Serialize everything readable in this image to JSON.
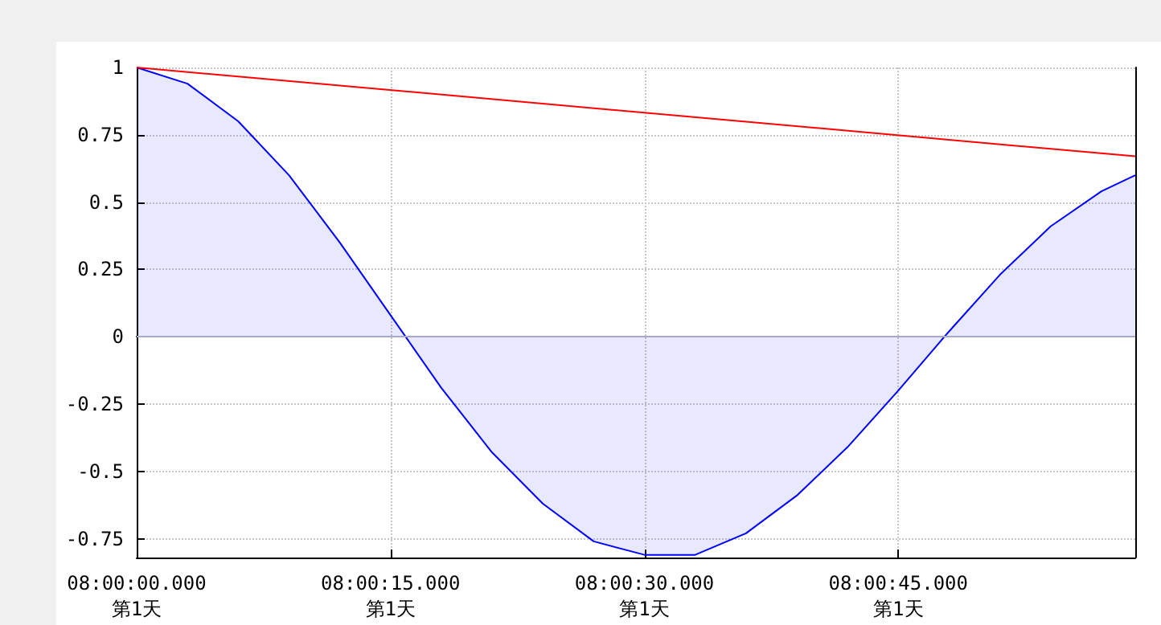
{
  "chart_data": {
    "type": "area",
    "x": [
      "2000-01-01T08:00:00",
      "2000-01-01T08:00:03",
      "2000-01-01T08:00:06",
      "2000-01-01T08:00:09",
      "2000-01-01T08:00:12",
      "2000-01-01T08:00:15",
      "2000-01-01T08:00:18",
      "2000-01-01T08:00:21",
      "2000-01-01T08:00:24",
      "2000-01-01T08:00:27",
      "2000-01-01T08:00:30",
      "2000-01-01T08:00:33",
      "2000-01-01T08:00:36",
      "2000-01-01T08:00:39",
      "2000-01-01T08:00:42",
      "2000-01-01T08:00:45",
      "2000-01-01T08:00:48",
      "2000-01-01T08:00:51",
      "2000-01-01T08:00:54",
      "2000-01-01T08:00:57",
      "2000-01-01T08:00:59"
    ],
    "series": [
      {
        "color": "#0000ff",
        "values": [
          1,
          0.94,
          0.8,
          0.6,
          0.35,
          0.08,
          -0.19,
          -0.43,
          -0.62,
          -0.76,
          -0.81,
          -0.81,
          -0.73,
          -0.59,
          -0.41,
          -0.2,
          0.02,
          0.23,
          0.41,
          0.54,
          0.6
        ]
      },
      {
        "type": "line",
        "color": "#ff0000",
        "x": [
          "2000-01-01T08:00:00",
          "2000-01-01T08:00:59"
        ],
        "values": [
          1,
          0.67
        ]
      }
    ],
    "xlim": [
      "2000-01-01T08:00:00",
      "2000-01-01T08:00:59"
    ],
    "xticks": [
      {
        "value": "2000-01-01T08:00:00",
        "label": "08:00:00.000\n第1天"
      },
      {
        "value": "2000-01-01T08:00:15",
        "label": "08:00:15.000\n第1天"
      },
      {
        "value": "2000-01-01T08:00:30",
        "label": "08:00:30.000\n第1天"
      },
      {
        "value": "2000-01-01T08:00:45",
        "label": "08:00:45.000\n第1天"
      }
    ],
    "ylim": [
      -0.82,
      1
    ],
    "yticks": [
      -0.75,
      -0.5,
      -0.25,
      0,
      0.25,
      0.5,
      0.75,
      1
    ],
    "ref_lines": [
      {
        "axis": "y",
        "value": 0,
        "color": "#a8a8c8"
      }
    ],
    "grid": true,
    "marker": "none",
    "line_style": "solid"
  }
}
